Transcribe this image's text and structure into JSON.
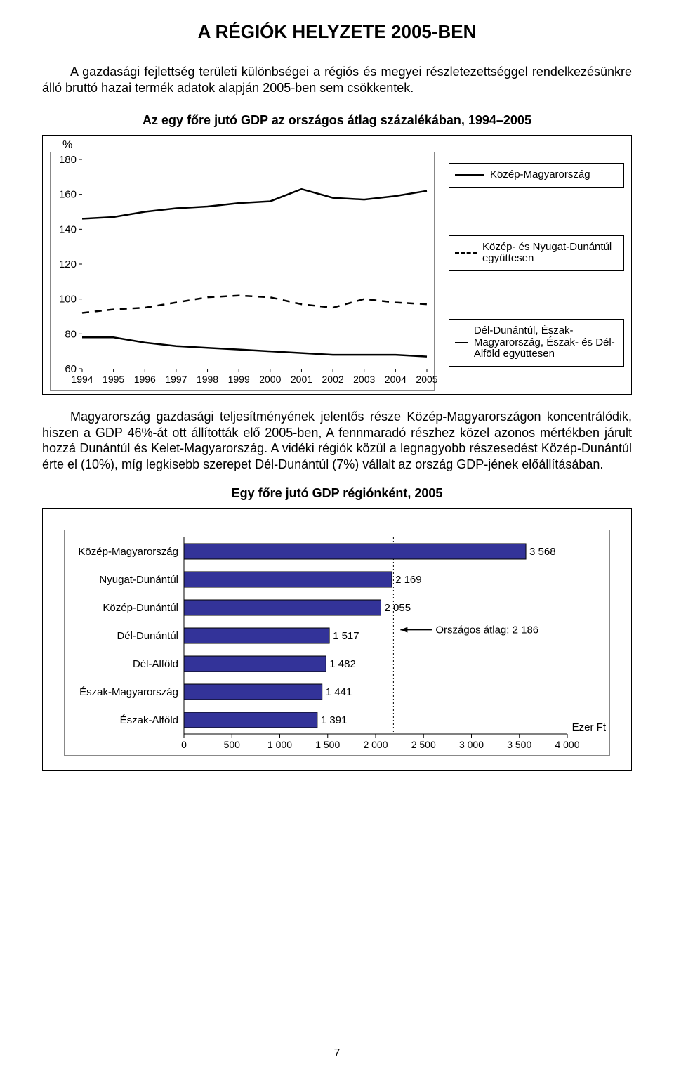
{
  "page_title": "A RÉGIÓK HELYZETE 2005-BEN",
  "intro_text": "A gazdasági fejlettség területi különbségei a régiós és megyei részletezettséggel rendelkezésünkre álló bruttó hazai termék adatok alapján 2005-ben sem csökkentek.",
  "line_chart": {
    "title": "Az egy főre jutó GDP az országos átlag százalékában, 1994–2005",
    "y_unit": "%",
    "x_labels": [
      "1994",
      "1995",
      "1996",
      "1997",
      "1998",
      "1999",
      "2000",
      "2001",
      "2002",
      "2003",
      "2004",
      "2005"
    ],
    "y_ticks": [
      60,
      80,
      100,
      120,
      140,
      160,
      180
    ],
    "series": [
      {
        "name": "Közép-Magyarország",
        "style": "solid",
        "values": [
          146,
          147,
          150,
          152,
          153,
          155,
          156,
          163,
          158,
          157,
          159,
          162
        ]
      },
      {
        "name": "Közép- és Nyugat-Dunántúl együttesen",
        "style": "dashed",
        "values": [
          92,
          94,
          95,
          98,
          101,
          102,
          101,
          97,
          95,
          100,
          98,
          97
        ]
      },
      {
        "name": "Dél-Dunántúl, Észak-Magyarország, Észak- és Dél-Alföld együttesen",
        "style": "solid",
        "values": [
          78,
          78,
          75,
          73,
          72,
          71,
          70,
          69,
          68,
          68,
          68,
          67
        ]
      }
    ],
    "frame_color": "#000000",
    "grid_color": "#888888",
    "background_color": "#ffffff"
  },
  "body_text": "Magyarország gazdasági teljesítményének jelentős része Közép-Magyarországon koncentrálódik, hiszen a GDP 46%-át ott állították elő 2005-ben, A fennmaradó részhez közel azonos mértékben járult hozzá Dunántúl és Kelet-Magyarország. A vidéki régiók közül a legnagyobb részesedést Közép-Dunántúl érte el (10%), míg legkisebb szerepet Dél-Dunántúl (7%) vállalt az ország GDP-jének előállításában.",
  "bar_chart": {
    "title": "Egy főre jutó GDP régiónként, 2005",
    "x_ticks": [
      0,
      500,
      1000,
      1500,
      2000,
      2500,
      3000,
      3500,
      4000
    ],
    "x_tick_labels": [
      "0",
      "500",
      "1 000",
      "1 500",
      "2 000",
      "2 500",
      "3 000",
      "3 500",
      "4 000"
    ],
    "x_max": 4000,
    "unit_label": "Ezer Ft",
    "avg_label": "Országos átlag: 2 186",
    "avg_value": 2186,
    "bar_fill": "#333399",
    "bar_border": "#000000",
    "categories": [
      {
        "label": "Közép-Magyarország",
        "value": 3568,
        "value_label": "3 568"
      },
      {
        "label": "Nyugat-Dunántúl",
        "value": 2169,
        "value_label": "2 169"
      },
      {
        "label": "Közép-Dunántúl",
        "value": 2055,
        "value_label": "2 055"
      },
      {
        "label": "Dél-Dunántúl",
        "value": 1517,
        "value_label": "1 517"
      },
      {
        "label": "Dél-Alföld",
        "value": 1482,
        "value_label": "1 482"
      },
      {
        "label": "Észak-Magyarország",
        "value": 1441,
        "value_label": "1 441"
      },
      {
        "label": "Észak-Alföld",
        "value": 1391,
        "value_label": "1 391"
      }
    ]
  },
  "page_number": "7"
}
